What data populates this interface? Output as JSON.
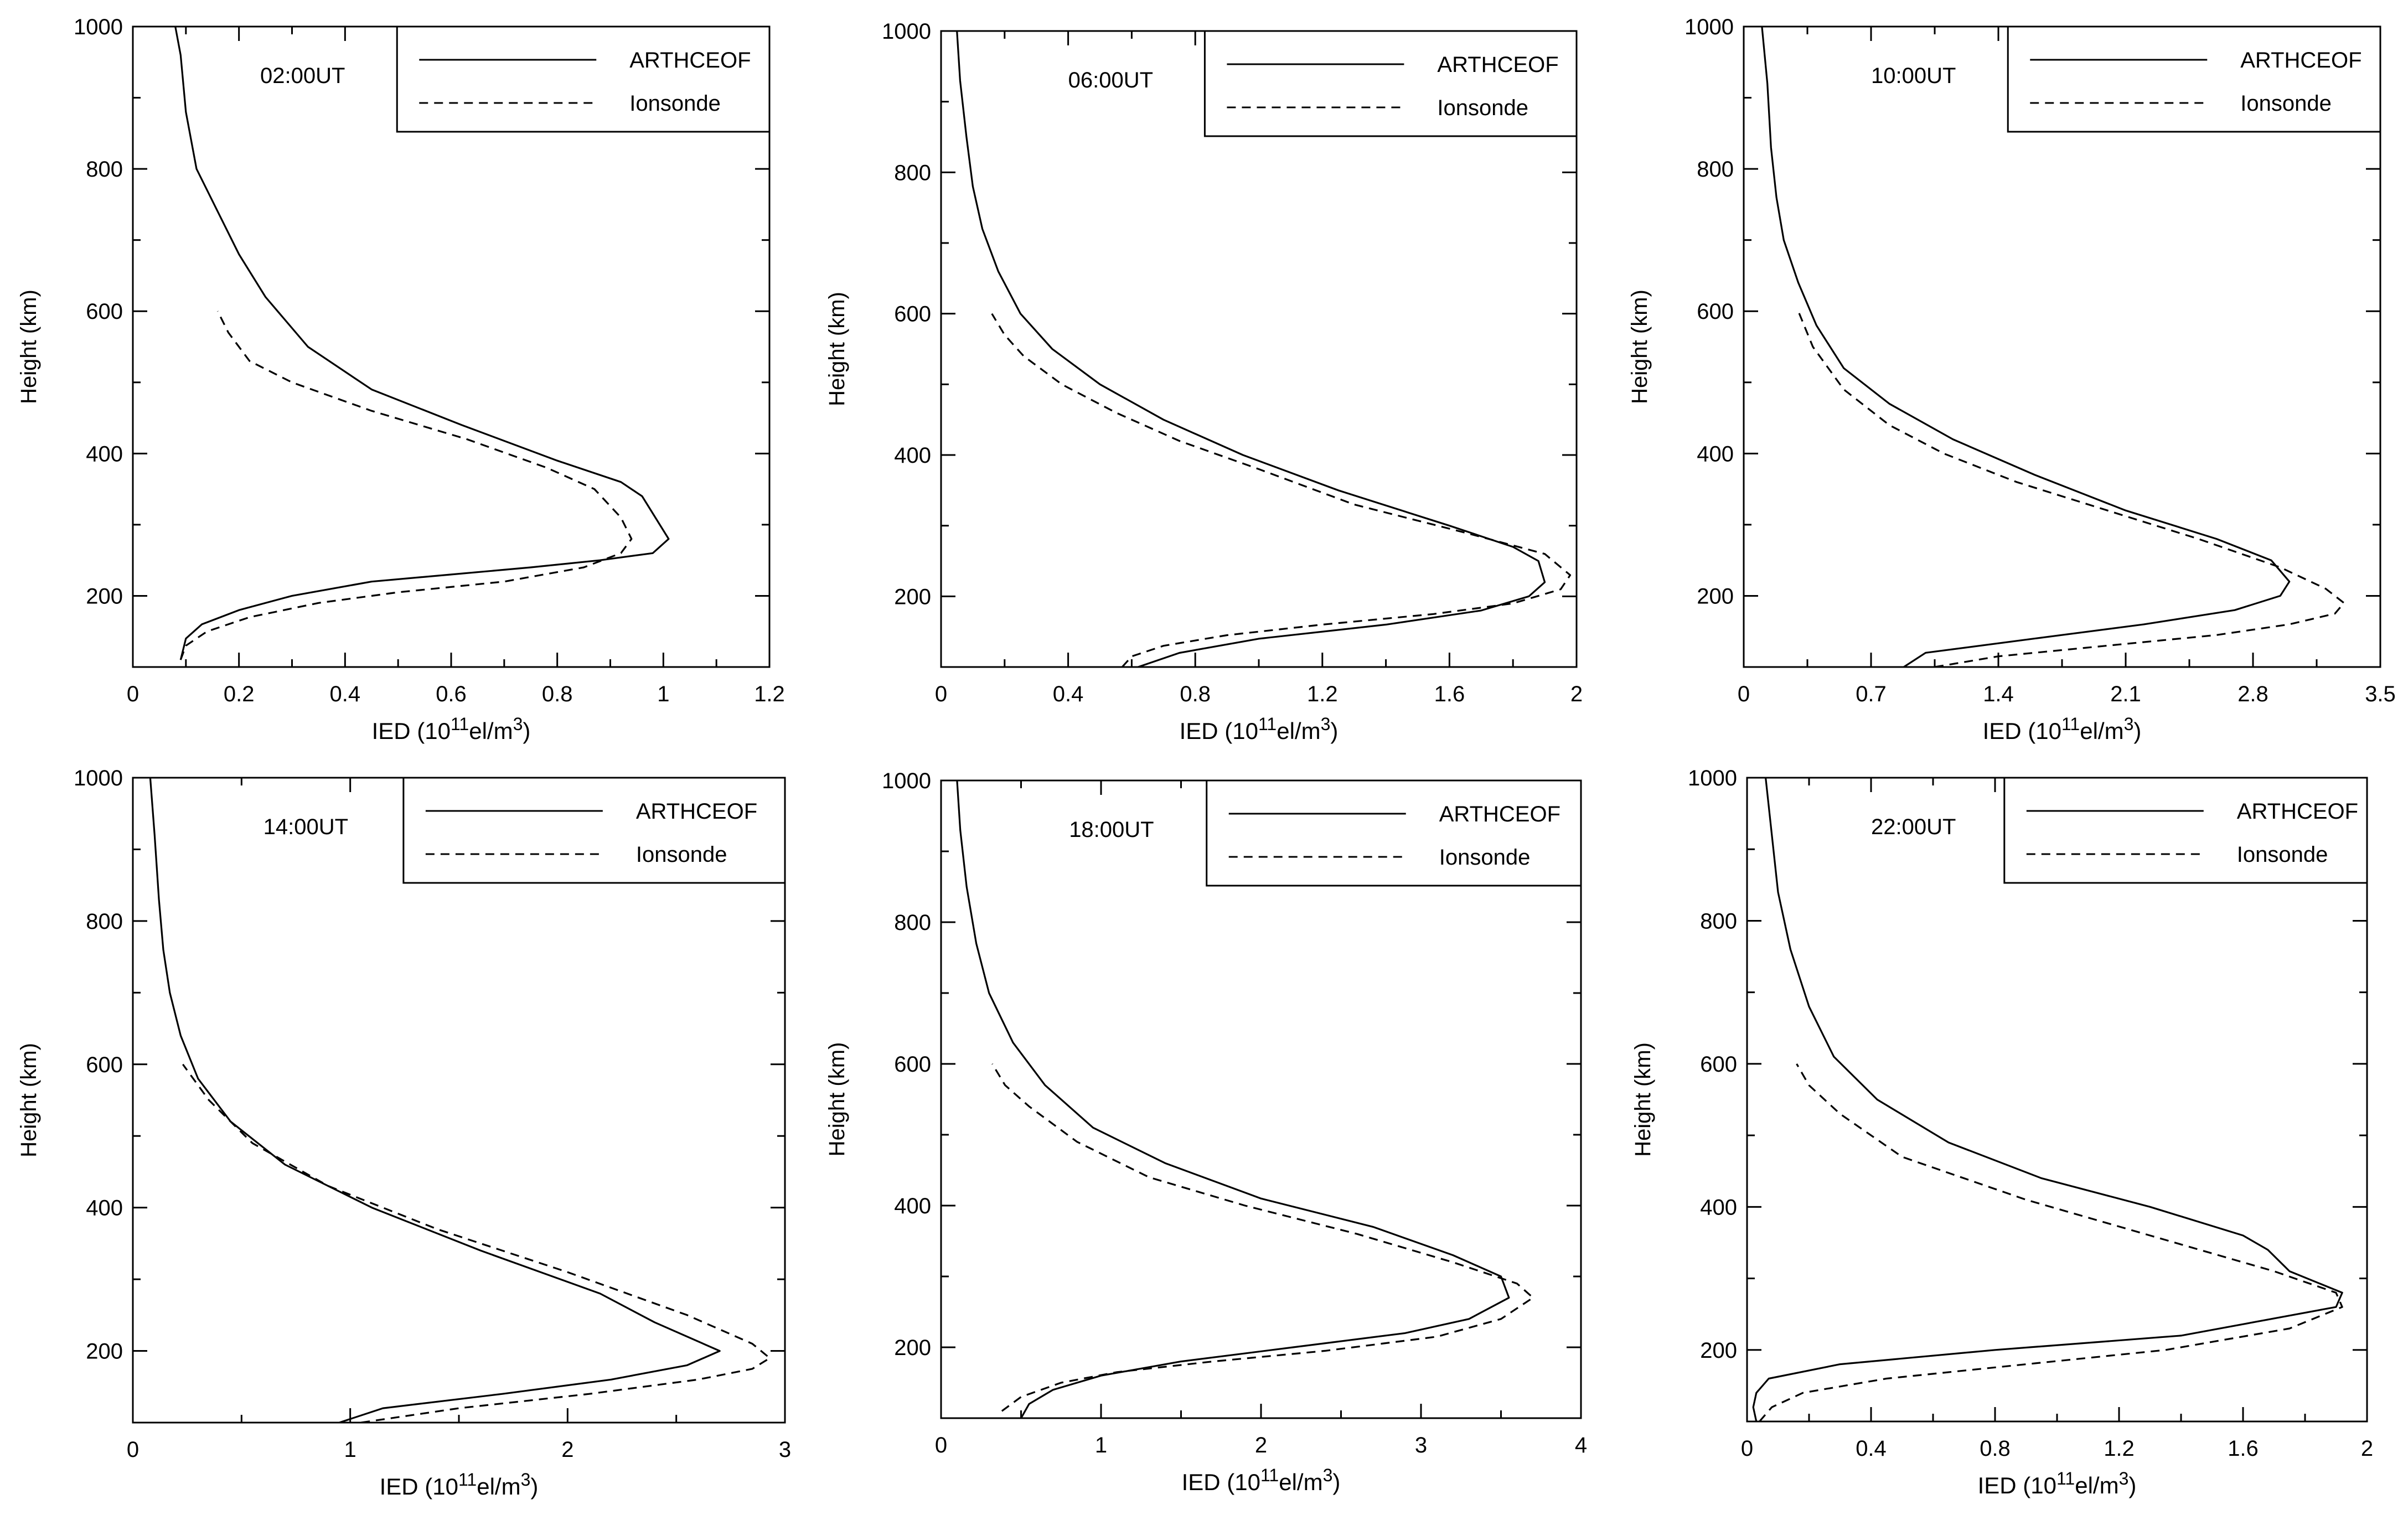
{
  "chart_data": [
    {
      "type": "line",
      "annotation": "02:00UT",
      "xlabel": "IED (10¹¹el/m³)",
      "xlabel_base": "IED (10",
      "xlabel_exp1": "11",
      "xlabel_mid": "el/m",
      "xlabel_exp2": "3",
      "xlabel_end": ")",
      "ylabel": "Height (km)",
      "xlim": [
        0,
        1.2
      ],
      "ylim": [
        100,
        1000
      ],
      "xticks": [
        0,
        0.2,
        0.4,
        0.6,
        0.8,
        1,
        1.2
      ],
      "xtick_labels": [
        "0",
        "0.2",
        "0.4",
        "0.6",
        "0.8",
        "1",
        "1.2"
      ],
      "yticks": [
        200,
        400,
        600,
        800,
        1000
      ],
      "ytick_labels": [
        "200",
        "400",
        "600",
        "800",
        "1000"
      ],
      "legend": [
        "ARTHCEOF",
        "Ionsonde"
      ],
      "series": [
        {
          "name": "ARTHCEOF",
          "style": "solid",
          "x": [
            0.09,
            0.1,
            0.13,
            0.2,
            0.3,
            0.45,
            0.6,
            0.75,
            0.88,
            0.98,
            1.01,
            0.96,
            0.92,
            0.8,
            0.62,
            0.45,
            0.33,
            0.25,
            0.2,
            0.16,
            0.12,
            0.1,
            0.09,
            0.08
          ],
          "y": [
            110,
            140,
            160,
            180,
            200,
            220,
            230,
            240,
            250,
            260,
            280,
            340,
            360,
            390,
            440,
            490,
            550,
            620,
            680,
            740,
            800,
            880,
            960,
            1000
          ]
        },
        {
          "name": "Ionsonde",
          "style": "dashed",
          "x": [
            0.09,
            0.1,
            0.14,
            0.22,
            0.35,
            0.5,
            0.7,
            0.85,
            0.92,
            0.94,
            0.92,
            0.87,
            0.78,
            0.63,
            0.45,
            0.3,
            0.22,
            0.18,
            0.16
          ],
          "y": [
            110,
            130,
            150,
            170,
            190,
            205,
            220,
            240,
            260,
            280,
            310,
            350,
            380,
            420,
            460,
            500,
            530,
            570,
            600
          ]
        }
      ]
    },
    {
      "type": "line",
      "annotation": "06:00UT",
      "xlabel": "IED (10¹¹el/m³)",
      "xlabel_base": "IED (10",
      "xlabel_exp1": "11",
      "xlabel_mid": "el/m",
      "xlabel_exp2": "3",
      "xlabel_end": ")",
      "ylabel": "Height (km)",
      "xlim": [
        0,
        2
      ],
      "ylim": [
        100,
        1000
      ],
      "xticks": [
        0,
        0.4,
        0.8,
        1.2,
        1.6,
        2
      ],
      "xtick_labels": [
        "0",
        "0.4",
        "0.8",
        "1.2",
        "1.6",
        "2"
      ],
      "yticks": [
        200,
        400,
        600,
        800,
        1000
      ],
      "ytick_labels": [
        "200",
        "400",
        "600",
        "800",
        "1000"
      ],
      "legend": [
        "ARTHCEOF",
        "Ionsonde"
      ],
      "series": [
        {
          "name": "ARTHCEOF",
          "style": "solid",
          "x": [
            0.62,
            0.75,
            1.0,
            1.4,
            1.7,
            1.85,
            1.9,
            1.88,
            1.8,
            1.6,
            1.25,
            0.95,
            0.7,
            0.5,
            0.35,
            0.25,
            0.18,
            0.13,
            0.1,
            0.08,
            0.06,
            0.05
          ],
          "y": [
            100,
            120,
            140,
            160,
            180,
            200,
            220,
            250,
            270,
            300,
            350,
            400,
            450,
            500,
            550,
            600,
            660,
            720,
            780,
            850,
            930,
            1000
          ]
        },
        {
          "name": "Ionsonde",
          "style": "dashed",
          "x": [
            0.57,
            0.6,
            0.7,
            0.9,
            1.2,
            1.55,
            1.8,
            1.95,
            1.98,
            1.9,
            1.65,
            1.3,
            1.0,
            0.75,
            0.55,
            0.38,
            0.26,
            0.2,
            0.16
          ],
          "y": [
            100,
            115,
            130,
            145,
            160,
            175,
            190,
            210,
            230,
            260,
            290,
            330,
            380,
            420,
            460,
            500,
            540,
            570,
            600
          ]
        }
      ]
    },
    {
      "type": "line",
      "annotation": "10:00UT",
      "xlabel": "IED (10¹¹el/m³)",
      "xlabel_base": "IED (10",
      "xlabel_exp1": "11",
      "xlabel_mid": "el/m",
      "xlabel_exp2": "3",
      "xlabel_end": ")",
      "ylabel": "Height (km)",
      "xlim": [
        0,
        3.5
      ],
      "ylim": [
        100,
        1000
      ],
      "xticks": [
        0,
        0.7,
        1.4,
        2.1,
        2.8,
        3.5
      ],
      "xtick_labels": [
        "0",
        "0.7",
        "1.4",
        "2.1",
        "2.8",
        "3.5"
      ],
      "yticks": [
        200,
        400,
        600,
        800,
        1000
      ],
      "ytick_labels": [
        "200",
        "400",
        "600",
        "800",
        "1000"
      ],
      "legend": [
        "ARTHCEOF",
        "Ionsonde"
      ],
      "series": [
        {
          "name": "ARTHCEOF",
          "style": "solid",
          "x": [
            0.88,
            1.0,
            1.6,
            2.2,
            2.7,
            2.95,
            3.0,
            2.9,
            2.6,
            2.1,
            1.6,
            1.15,
            0.8,
            0.55,
            0.4,
            0.3,
            0.22,
            0.18,
            0.15,
            0.13,
            0.1
          ],
          "y": [
            100,
            120,
            140,
            160,
            180,
            200,
            220,
            250,
            280,
            320,
            370,
            420,
            470,
            520,
            580,
            640,
            700,
            760,
            830,
            920,
            1000
          ]
        },
        {
          "name": "Ionsonde",
          "style": "dashed",
          "x": [
            1.05,
            1.4,
            2.0,
            2.6,
            3.0,
            3.25,
            3.3,
            3.2,
            2.95,
            2.5,
            2.0,
            1.5,
            1.1,
            0.8,
            0.55,
            0.38,
            0.3
          ],
          "y": [
            100,
            115,
            130,
            145,
            160,
            175,
            190,
            210,
            240,
            280,
            320,
            360,
            400,
            440,
            490,
            550,
            600
          ]
        }
      ]
    },
    {
      "type": "line",
      "annotation": "14:00UT",
      "xlabel": "IED (10¹¹el/m³)",
      "xlabel_base": "IED (10",
      "xlabel_exp1": "11",
      "xlabel_mid": "el/m",
      "xlabel_exp2": "3",
      "xlabel_end": ")",
      "ylabel": "Height (km)",
      "xlim": [
        0,
        3
      ],
      "ylim": [
        100,
        1000
      ],
      "xticks": [
        0,
        1,
        2,
        3
      ],
      "xtick_labels": [
        "0",
        "1",
        "2",
        "3"
      ],
      "yticks": [
        200,
        400,
        600,
        800,
        1000
      ],
      "ytick_labels": [
        "200",
        "400",
        "600",
        "800",
        "1000"
      ],
      "legend": [
        "ARTHCEOF",
        "Ionsonde"
      ],
      "series": [
        {
          "name": "ARTHCEOF",
          "style": "solid",
          "x": [
            0.95,
            1.15,
            1.7,
            2.2,
            2.55,
            2.7,
            2.4,
            2.15,
            1.6,
            1.1,
            0.7,
            0.45,
            0.3,
            0.22,
            0.17,
            0.14,
            0.12,
            0.1,
            0.08
          ],
          "y": [
            100,
            120,
            140,
            160,
            180,
            200,
            240,
            280,
            340,
            400,
            460,
            520,
            580,
            640,
            700,
            760,
            830,
            920,
            1000
          ]
        },
        {
          "name": "Ionsonde",
          "style": "dashed",
          "x": [
            1.05,
            1.5,
            2.1,
            2.6,
            2.85,
            2.93,
            2.85,
            2.55,
            2.0,
            1.4,
            0.9,
            0.55,
            0.35,
            0.23
          ],
          "y": [
            100,
            120,
            140,
            160,
            175,
            190,
            210,
            250,
            310,
            370,
            430,
            490,
            550,
            600
          ]
        }
      ]
    },
    {
      "type": "line",
      "annotation": "18:00UT",
      "xlabel": "IED (10¹¹el/m³)",
      "xlabel_base": "IED (10",
      "xlabel_exp1": "11",
      "xlabel_mid": "el/m",
      "xlabel_exp2": "3",
      "xlabel_end": ")",
      "ylabel": "Height (km)",
      "xlim": [
        0,
        4
      ],
      "ylim": [
        100,
        1000
      ],
      "xticks": [
        0,
        1,
        2,
        3,
        4
      ],
      "xtick_labels": [
        "0",
        "1",
        "2",
        "3",
        "4"
      ],
      "yticks": [
        200,
        400,
        600,
        800,
        1000
      ],
      "ytick_labels": [
        "200",
        "400",
        "600",
        "800",
        "1000"
      ],
      "legend": [
        "ARTHCEOF",
        "Ionsonde"
      ],
      "series": [
        {
          "name": "ARTHCEOF",
          "style": "solid",
          "x": [
            0.5,
            0.55,
            0.7,
            1.0,
            1.5,
            2.2,
            2.9,
            3.3,
            3.55,
            3.5,
            3.2,
            2.7,
            2.0,
            1.4,
            0.95,
            0.65,
            0.45,
            0.3,
            0.22,
            0.16,
            0.12,
            0.1
          ],
          "y": [
            100,
            120,
            140,
            160,
            180,
            200,
            220,
            240,
            270,
            300,
            330,
            370,
            410,
            460,
            510,
            570,
            630,
            700,
            770,
            850,
            930,
            1000
          ]
        },
        {
          "name": "Ionsonde",
          "style": "dashed",
          "x": [
            0.38,
            0.5,
            0.75,
            1.1,
            1.7,
            2.4,
            3.1,
            3.5,
            3.7,
            3.6,
            3.2,
            2.6,
            1.9,
            1.3,
            0.85,
            0.55,
            0.4,
            0.32
          ],
          "y": [
            110,
            130,
            150,
            165,
            180,
            195,
            215,
            240,
            270,
            290,
            320,
            360,
            400,
            440,
            490,
            540,
            570,
            600
          ]
        }
      ]
    },
    {
      "type": "line",
      "annotation": "22:00UT",
      "xlabel": "IED (10¹¹el/m³)",
      "xlabel_base": "IED (10",
      "xlabel_exp1": "11",
      "xlabel_mid": "el/m",
      "xlabel_exp2": "3",
      "xlabel_end": ")",
      "ylabel": "Height (km)",
      "xlim": [
        0,
        2
      ],
      "ylim": [
        100,
        1000
      ],
      "xticks": [
        0,
        0.4,
        0.8,
        1.2,
        1.6,
        2
      ],
      "xtick_labels": [
        "0",
        "0.4",
        "0.8",
        "1.2",
        "1.6",
        "2"
      ],
      "yticks": [
        200,
        400,
        600,
        800,
        1000
      ],
      "ytick_labels": [
        "200",
        "400",
        "600",
        "800",
        "1000"
      ],
      "legend": [
        "ARTHCEOF",
        "Ionsonde"
      ],
      "series": [
        {
          "name": "ARTHCEOF",
          "style": "solid",
          "x": [
            0.03,
            0.02,
            0.03,
            0.07,
            0.3,
            0.8,
            1.4,
            1.9,
            1.92,
            1.75,
            1.68,
            1.6,
            1.3,
            0.95,
            0.65,
            0.42,
            0.28,
            0.2,
            0.14,
            0.1,
            0.08,
            0.06
          ],
          "y": [
            100,
            120,
            140,
            160,
            180,
            200,
            220,
            260,
            280,
            310,
            340,
            360,
            400,
            440,
            490,
            550,
            610,
            680,
            760,
            840,
            920,
            1000
          ]
        },
        {
          "name": "Ionsonde",
          "style": "dashed",
          "x": [
            0.04,
            0.08,
            0.18,
            0.45,
            0.9,
            1.35,
            1.75,
            1.92,
            1.9,
            1.7,
            1.3,
            0.9,
            0.5,
            0.3,
            0.2,
            0.16
          ],
          "y": [
            100,
            120,
            140,
            160,
            180,
            200,
            230,
            260,
            280,
            310,
            360,
            410,
            470,
            530,
            570,
            600
          ]
        }
      ]
    }
  ]
}
